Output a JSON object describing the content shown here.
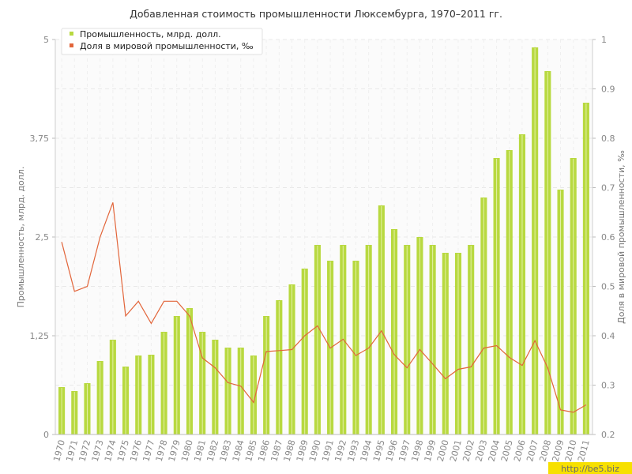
{
  "watermark": "http://be5.biz",
  "chart_data": {
    "type": "bar",
    "title": "Добавленная стоимость промышленности Люксембурга, 1970–2011 гг.",
    "ylabel_left": "Промышленность, млрд. долл.",
    "ylabel_right": "Доля в мировой промышленности, ‰",
    "ylim_left": [
      0,
      5
    ],
    "ylim_right": [
      0.2,
      1
    ],
    "yticks_left": [
      "0",
      "1,25",
      "2,5",
      "3,75",
      "5"
    ],
    "yticks_right": [
      "0.2",
      "0.3",
      "0.4",
      "0.5",
      "0.6",
      "0.7",
      "0.8",
      "0.9",
      "1"
    ],
    "grid": true,
    "legend_position": "top-left",
    "categories": [
      "1970",
      "1971",
      "1972",
      "1973",
      "1974",
      "1975",
      "1976",
      "1977",
      "1978",
      "1979",
      "1980",
      "1981",
      "1982",
      "1983",
      "1984",
      "1985",
      "1986",
      "1987",
      "1988",
      "1989",
      "1990",
      "1991",
      "1992",
      "1993",
      "1994",
      "1995",
      "1996",
      "1997",
      "1998",
      "1999",
      "2000",
      "2001",
      "2002",
      "2003",
      "2004",
      "2005",
      "2006",
      "2007",
      "2008",
      "2009",
      "2010",
      "2011"
    ],
    "series": [
      {
        "name": "Промышленность, млрд. долл.",
        "type": "bar",
        "axis": "left",
        "color": "#b8d940",
        "values": [
          0.6,
          0.55,
          0.65,
          0.93,
          1.2,
          0.86,
          1.0,
          1.01,
          1.3,
          1.5,
          1.6,
          1.3,
          1.2,
          1.1,
          1.1,
          1.0,
          1.5,
          1.7,
          1.9,
          2.1,
          2.4,
          2.2,
          2.4,
          2.2,
          2.4,
          2.9,
          2.6,
          2.4,
          2.5,
          2.4,
          2.3,
          2.3,
          2.4,
          3.0,
          3.5,
          3.6,
          3.8,
          4.9,
          4.6,
          3.1,
          3.5,
          4.2
        ]
      },
      {
        "name": "Доля в мировой промышленности, ‰",
        "type": "line",
        "axis": "right",
        "color": "#e2653a",
        "values": [
          0.59,
          0.49,
          0.5,
          0.6,
          0.67,
          0.44,
          0.47,
          0.425,
          0.47,
          0.47,
          0.44,
          0.355,
          0.335,
          0.305,
          0.298,
          0.265,
          0.368,
          0.37,
          0.372,
          0.4,
          0.42,
          0.375,
          0.393,
          0.36,
          0.375,
          0.41,
          0.362,
          0.335,
          0.372,
          0.343,
          0.313,
          0.332,
          0.337,
          0.375,
          0.38,
          0.356,
          0.34,
          0.39,
          0.335,
          0.25,
          0.245,
          0.26
        ]
      }
    ]
  }
}
